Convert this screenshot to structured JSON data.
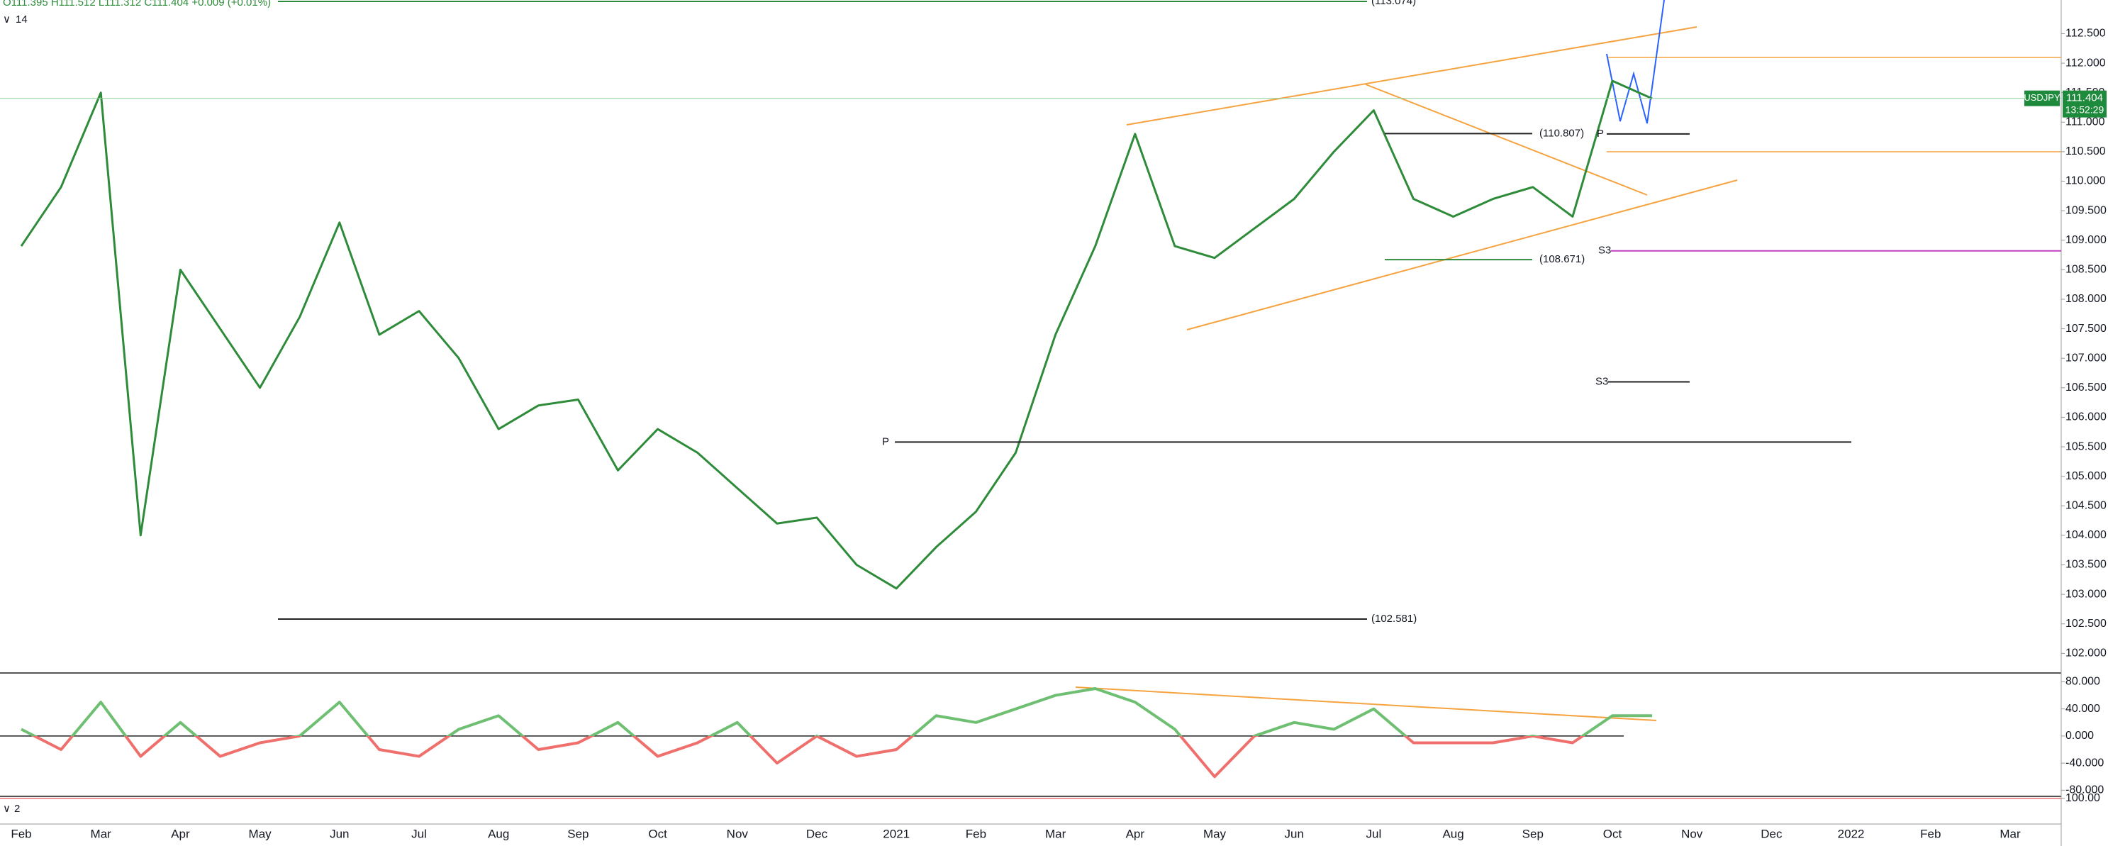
{
  "chart_data": [
    {
      "type": "line",
      "title": "O111.395 H111.512 L111.312 C111.404 +0.009 (+0.01%)",
      "indicator": "14",
      "symbol": "USDJPY",
      "last_price": 111.404,
      "countdown": "13:52:29",
      "color": "#2e8b3a",
      "categories": [
        "Feb",
        null,
        "Mar",
        null,
        "Apr",
        null,
        "May",
        null,
        "Jun",
        null,
        "Jul",
        null,
        "Aug",
        null,
        "Sep",
        null,
        "Oct",
        null,
        "Nov",
        null,
        "Dec",
        null,
        "2021",
        null,
        "Feb",
        null,
        "Mar",
        null,
        "Apr",
        null,
        "May",
        null,
        "Jun",
        null,
        "Jul",
        null,
        "Aug",
        null,
        "Sep",
        null,
        "Oct",
        null,
        "Nov",
        null,
        "Dec",
        null,
        "2022",
        null,
        "Feb",
        null,
        "Mar",
        null
      ],
      "values": [
        108.9,
        109.9,
        111.5,
        104.0,
        108.5,
        107.5,
        106.5,
        107.7,
        109.3,
        107.4,
        107.8,
        107.0,
        105.8,
        106.2,
        106.3,
        105.1,
        105.8,
        105.4,
        104.8,
        104.2,
        104.3,
        103.5,
        103.1,
        103.8,
        104.4,
        105.4,
        107.4,
        108.9,
        110.8,
        108.9,
        108.7,
        109.2,
        109.7,
        110.5,
        111.2,
        109.7,
        109.4,
        109.7,
        109.9,
        109.4,
        111.7,
        111.4,
        null,
        null,
        null,
        null,
        null,
        null,
        null,
        null,
        null,
        null
      ],
      "ylim": [
        101.68,
        113.07
      ],
      "yticks": [
        {
          "value": 102,
          "label": "102.000"
        },
        {
          "value": 102.5,
          "label": "102.500"
        },
        {
          "value": 103,
          "label": "103.000"
        },
        {
          "value": 103.5,
          "label": "103.500"
        },
        {
          "value": 104,
          "label": "104.000"
        },
        {
          "value": 104.5,
          "label": "104.500"
        },
        {
          "value": 105,
          "label": "105.000"
        },
        {
          "value": 105.5,
          "label": "105.500"
        },
        {
          "value": 106,
          "label": "106.000"
        },
        {
          "value": 106.5,
          "label": "106.500"
        },
        {
          "value": 107,
          "label": "107.000"
        },
        {
          "value": 107.5,
          "label": "107.500"
        },
        {
          "value": 108,
          "label": "108.000"
        },
        {
          "value": 108.5,
          "label": "108.500"
        },
        {
          "value": 109,
          "label": "109.000"
        },
        {
          "value": 109.5,
          "label": "109.500"
        },
        {
          "value": 110,
          "label": "110.000"
        },
        {
          "value": 110.5,
          "label": "110.500"
        },
        {
          "value": 111,
          "label": "111.000"
        },
        {
          "value": 111.5,
          "label": "111.500"
        },
        {
          "value": 112,
          "label": "112.000"
        },
        {
          "value": 112.5,
          "label": "112.500"
        }
      ],
      "annotations": [
        {
          "label": "(113.074)",
          "value": 113.074
        },
        {
          "label": "(110.807)",
          "value": 110.807
        },
        {
          "label": "(108.671)",
          "value": 108.671
        },
        {
          "label": "(102.581)",
          "value": 102.581
        },
        {
          "label": "P",
          "value": 105.58
        },
        {
          "label": "P",
          "value": 110.8
        },
        {
          "label": "S3",
          "value": 108.82
        },
        {
          "label": "S3",
          "value": 106.6
        }
      ]
    },
    {
      "type": "line",
      "values": [
        10,
        -20,
        50,
        -30,
        20,
        -30,
        -10,
        0,
        50,
        -20,
        -30,
        10,
        30,
        -20,
        -10,
        20,
        -30,
        -10,
        20,
        -40,
        0,
        -30,
        -20,
        30,
        20,
        40,
        60,
        70,
        50,
        10,
        -60,
        0,
        20,
        10,
        40,
        -10,
        -10,
        -10,
        0,
        -10,
        30,
        30,
        null,
        null,
        null,
        null,
        null,
        null,
        null,
        null,
        null,
        null
      ],
      "ylim": [
        -88,
        92
      ],
      "yticks": [
        {
          "value": 80,
          "label": "80.000"
        },
        {
          "value": 40,
          "label": "40.000"
        },
        {
          "value": 0,
          "label": "0.000"
        },
        {
          "value": -40,
          "label": "-40.000"
        },
        {
          "value": -80,
          "label": "-80.000"
        }
      ]
    },
    {
      "type": "line",
      "title": "2",
      "ylim": [
        0,
        105
      ],
      "yticks": [
        {
          "value": 100,
          "label": "100.00"
        }
      ]
    }
  ]
}
